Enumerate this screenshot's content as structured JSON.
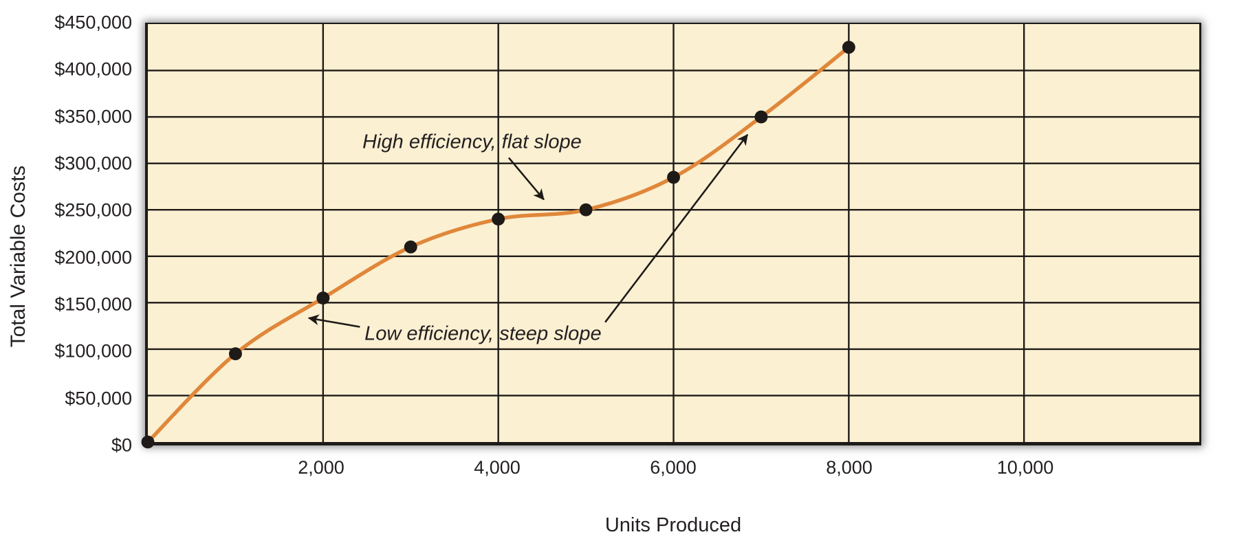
{
  "figure": {
    "background": "#ffffff",
    "text_color": "#231f20"
  },
  "chart_data": {
    "type": "line",
    "title": "",
    "xlabel": "Units Produced",
    "ylabel": "Total Variable Costs",
    "x": [
      0,
      1000,
      2000,
      3000,
      4000,
      5000,
      6000,
      7000,
      8000
    ],
    "values": [
      0,
      95000,
      155000,
      210000,
      240000,
      250000,
      285000,
      350000,
      425000
    ],
    "xlim": [
      0,
      12000
    ],
    "ylim": [
      0,
      450000
    ],
    "x_tick_step": 2000,
    "x_tick_labels": [
      "2,000",
      "4,000",
      "6,000",
      "8,000",
      "10,000"
    ],
    "y_tick_step": 50000,
    "y_tick_labels": [
      "$0",
      "$50,000",
      "$100,000",
      "$150,000",
      "$200,000",
      "$250,000",
      "$300,000",
      "$350,000",
      "$400,000",
      "$450,000"
    ],
    "grid": true,
    "legend": "none",
    "plot_bg": "#fbf0d2",
    "line_color": "#e0873a",
    "marker_color": "#1e1a17",
    "grid_color": "#1e1a17",
    "annotations": [
      {
        "id": "high-efficiency",
        "text": "High efficiency, flat slope",
        "text_at": [
          3700,
          323000
        ],
        "arrows": [
          {
            "from": [
              4120,
              306000
            ],
            "to": [
              4520,
              261000
            ]
          }
        ]
      },
      {
        "id": "low-efficiency",
        "text": "Low efficiency, steep slope",
        "text_at": [
          3825,
          116500
        ],
        "arrows": [
          {
            "from": [
              2420,
              124000
            ],
            "to": [
              1835,
              133500
            ]
          },
          {
            "from": [
              5220,
              129000
            ],
            "to": [
              6845,
              331000
            ]
          }
        ]
      }
    ]
  }
}
